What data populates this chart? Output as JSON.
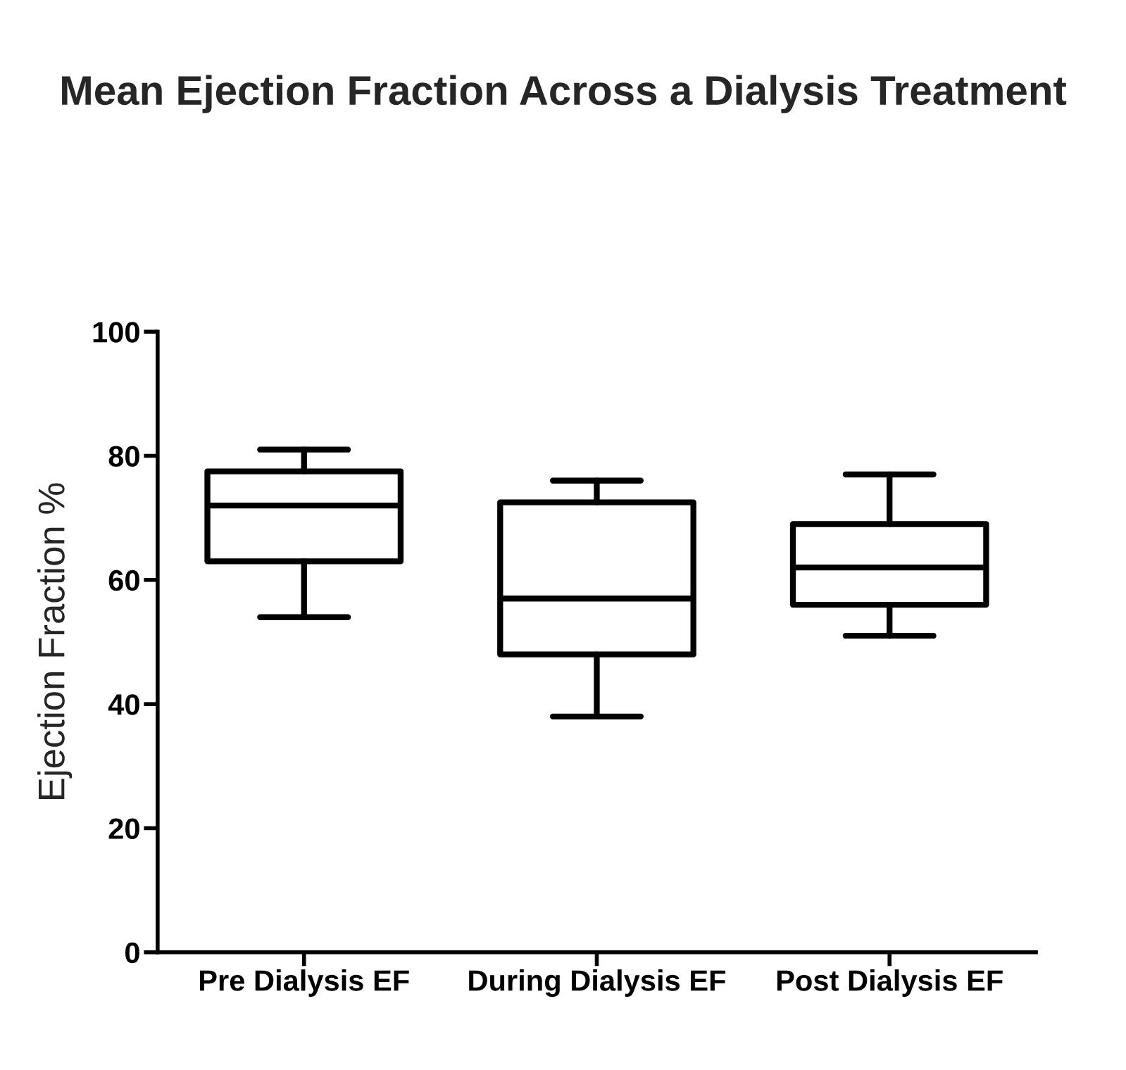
{
  "chart_data": {
    "type": "box",
    "title": "Mean Ejection Fraction Across a Dialysis Treatment",
    "ylabel": "Ejection Fraction %",
    "categories": [
      "Pre Dialysis EF",
      "During Dialysis EF",
      "Post Dialysis EF"
    ],
    "boxes": [
      {
        "low": 54,
        "q1": 63,
        "median": 72,
        "q3": 77.5,
        "high": 81
      },
      {
        "low": 38,
        "q1": 48,
        "median": 57,
        "q3": 72.5,
        "high": 76
      },
      {
        "low": 51,
        "q1": 56,
        "median": 62,
        "q3": 69,
        "high": 77
      }
    ],
    "color": "#000000",
    "ylim": [
      0,
      100
    ],
    "yticks": [
      0,
      20,
      40,
      60,
      80,
      100
    ],
    "grid": false
  }
}
